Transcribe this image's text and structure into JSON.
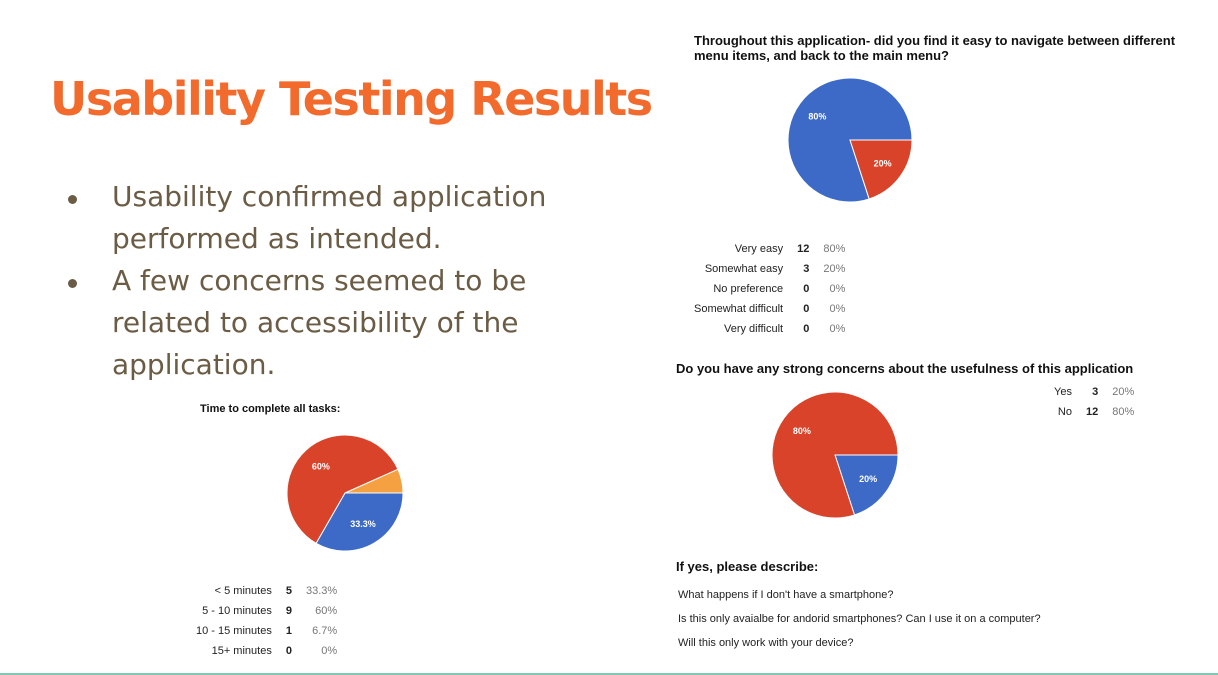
{
  "slide": {
    "title": "Usability Testing Results",
    "bullets": [
      "Usability confirmed application performed as intended.",
      "A few concerns seemed to be related to accessibility of the application."
    ]
  },
  "colors": {
    "blue": "#3c6ac6",
    "red": "#d8432a",
    "orange": "#f5a141",
    "title": "#f26a2c",
    "body": "#6b5c45"
  },
  "chart_data": [
    {
      "type": "pie",
      "title": "Throughout this application- did you find it easy to navigate between different menu items, and back to the main menu?",
      "slices": [
        {
          "label": "Very easy",
          "count": 12,
          "percent": "80%",
          "value": 80,
          "color": "#3c6ac6",
          "slice_label": "80%"
        },
        {
          "label": "Somewhat easy",
          "count": 3,
          "percent": "20%",
          "value": 20,
          "color": "#d8432a",
          "slice_label": "20%"
        },
        {
          "label": "No preference",
          "count": 0,
          "percent": "0%",
          "value": 0,
          "color": "#f5a141",
          "slice_label": ""
        },
        {
          "label": "Somewhat difficult",
          "count": 0,
          "percent": "0%",
          "value": 0,
          "color": "#1e9e4a",
          "slice_label": ""
        },
        {
          "label": "Very difficult",
          "count": 0,
          "percent": "0%",
          "value": 0,
          "color": "#9a2d9a",
          "slice_label": ""
        }
      ]
    },
    {
      "type": "pie",
      "title": "Do you have any strong concerns about the usefulness of this application",
      "slices": [
        {
          "label": "Yes",
          "count": 3,
          "percent": "20%",
          "value": 20,
          "color": "#3c6ac6",
          "slice_label": "20%"
        },
        {
          "label": "No",
          "count": 12,
          "percent": "80%",
          "value": 80,
          "color": "#d8432a",
          "slice_label": "80%"
        }
      ]
    },
    {
      "type": "pie",
      "title": "Time to complete all tasks:",
      "slices": [
        {
          "label": "< 5 minutes",
          "count": 5,
          "percent": "33.3%",
          "value": 33.3,
          "color": "#3c6ac6",
          "slice_label": "33.3%"
        },
        {
          "label": "5 - 10 minutes",
          "count": 9,
          "percent": "60%",
          "value": 60,
          "color": "#d8432a",
          "slice_label": "60%"
        },
        {
          "label": "10 - 15 minutes",
          "count": 1,
          "percent": "6.7%",
          "value": 6.7,
          "color": "#f5a141",
          "slice_label": ""
        },
        {
          "label": "15+ minutes",
          "count": 0,
          "percent": "0%",
          "value": 0,
          "color": "#1e9e4a",
          "slice_label": ""
        }
      ]
    }
  ],
  "describe": {
    "heading": "If yes, please describe:",
    "answers": [
      "What happens if I don't have a smartphone?",
      "Is this only avaialbe for andorid smartphones? Can I use it on a computer?",
      "Will this only work with your device?"
    ]
  }
}
